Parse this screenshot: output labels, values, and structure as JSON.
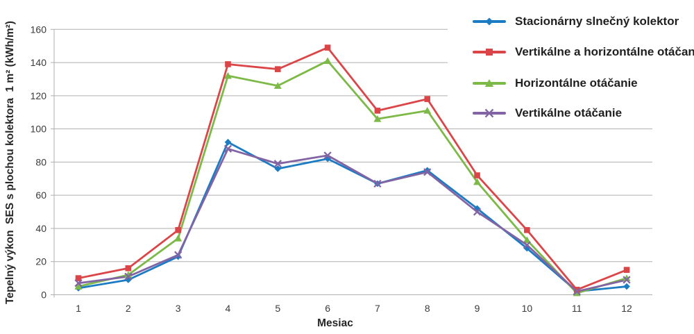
{
  "chart_data": {
    "type": "line",
    "title": "",
    "xlabel": "Mesiac",
    "ylabel": "Tepelný výkon  SES s plochou kolektora  1 m² (kWh/m²)",
    "x": [
      1,
      2,
      3,
      4,
      5,
      6,
      7,
      8,
      9,
      10,
      11,
      12
    ],
    "x_labels": [
      "1",
      "2",
      "3",
      "4",
      "5",
      "6",
      "7",
      "8",
      "9",
      "10",
      "11",
      "12"
    ],
    "ylim": [
      0,
      160
    ],
    "y_ticks": [
      0,
      20,
      40,
      60,
      80,
      100,
      120,
      140,
      160
    ],
    "grid": true,
    "legend_position": "top-right",
    "series": [
      {
        "name": "Stacionárny slnečný kolektor",
        "marker": "diamond",
        "color": "#1b7cc4",
        "values": [
          4,
          9,
          23,
          92,
          76,
          82,
          67,
          75,
          52,
          28,
          2,
          5
        ]
      },
      {
        "name": "Vertikálne a horizontálne otáčanie",
        "marker": "square",
        "color": "#dc4547",
        "values": [
          10,
          16,
          39,
          139,
          136,
          149,
          111,
          118,
          72,
          39,
          3,
          15
        ]
      },
      {
        "name": "Horizontálne otáčanie",
        "marker": "triangle",
        "color": "#7cb946",
        "values": [
          5,
          12,
          34,
          132,
          126,
          141,
          106,
          111,
          68,
          33,
          1,
          10
        ]
      },
      {
        "name": "Vertikálne otáčanie",
        "marker": "x",
        "color": "#8264a4",
        "values": [
          7,
          11,
          24,
          88,
          79,
          84,
          67,
          74,
          50,
          30,
          2,
          9
        ]
      }
    ],
    "style": {
      "gridline_color": "#afafaf",
      "tick_color": "#3a3a3a",
      "background": "#ffffff"
    }
  }
}
